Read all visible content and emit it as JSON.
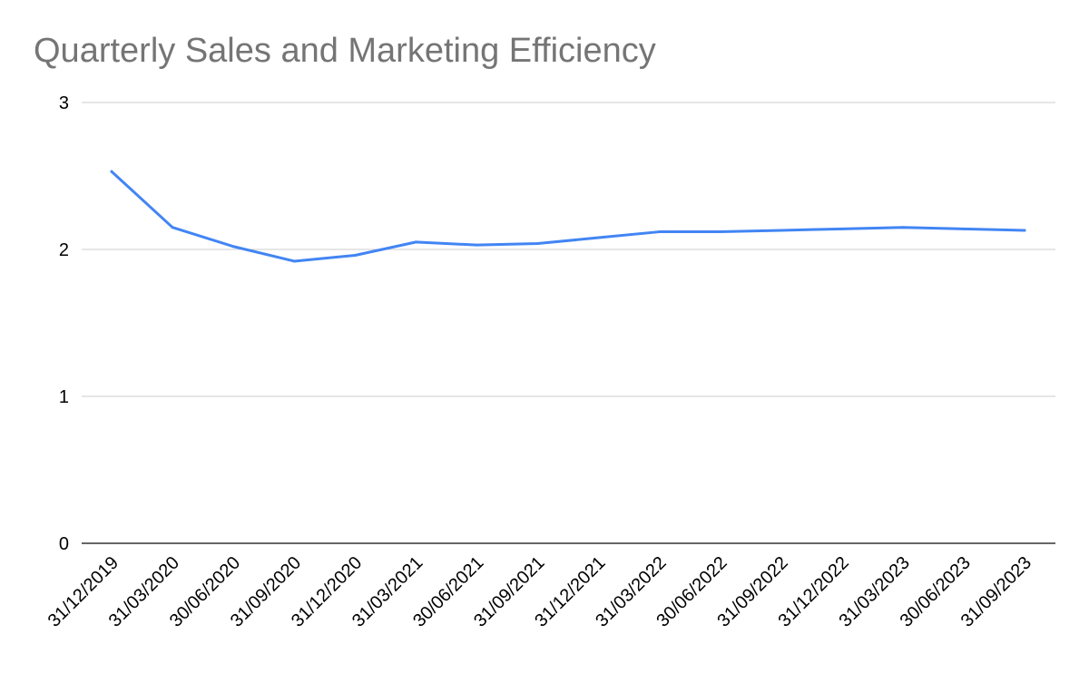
{
  "chart_data": {
    "type": "line",
    "title": "Quarterly Sales and Marketing Efficiency",
    "xlabel": "",
    "ylabel": "",
    "categories": [
      "31/12/2019",
      "31/03/2020",
      "30/06/2020",
      "31/09/2020",
      "31/12/2020",
      "31/03/2021",
      "30/06/2021",
      "31/09/2021",
      "31/12/2021",
      "31/03/2022",
      "30/06/2022",
      "31/09/2022",
      "31/12/2022",
      "31/03/2023",
      "30/06/2023",
      "31/09/2023"
    ],
    "series": [
      {
        "values": [
          2.53,
          2.15,
          2.02,
          1.92,
          1.96,
          2.05,
          2.03,
          2.04,
          2.08,
          2.12,
          2.12,
          2.13,
          2.14,
          2.15,
          2.14,
          2.13
        ],
        "color": "#4285f4"
      }
    ],
    "ylim": [
      0,
      3
    ],
    "yticks": [
      0,
      1,
      2,
      3
    ],
    "grid": true,
    "legend": "none"
  }
}
